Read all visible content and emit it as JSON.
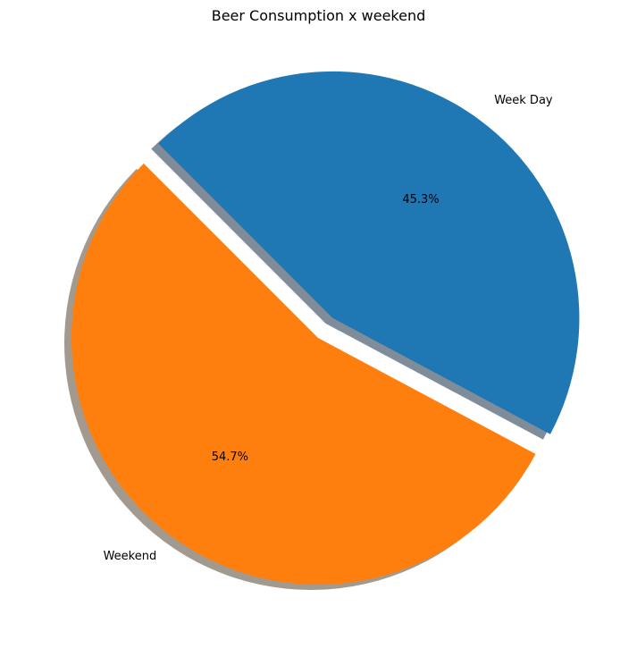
{
  "chart_data": {
    "type": "pie",
    "title": "Beer Consumption x weekend",
    "slices": [
      {
        "label": "Week Day",
        "value": 45.3,
        "pct_label": "45.3%",
        "color": "#1f77b4",
        "shadow_color": "#7f8c99",
        "exploded": true
      },
      {
        "label": "Weekend",
        "value": 54.7,
        "pct_label": "54.7%",
        "color": "#ff7f0e",
        "shadow_color": "#a39a8f",
        "exploded": false
      }
    ],
    "shadow": true
  }
}
